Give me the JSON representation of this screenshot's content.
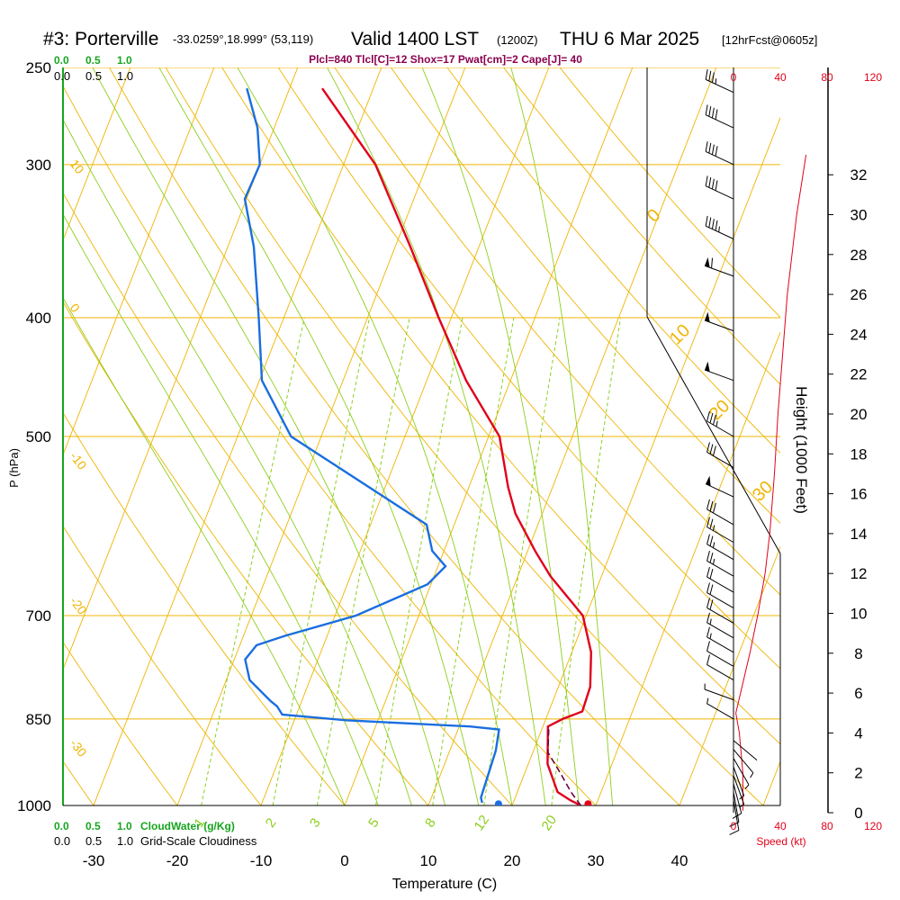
{
  "header": {
    "station": "#3: Porterville",
    "coords": "-33.0259°,18.999° (53,119)",
    "valid": "Valid 1400 LST",
    "utc": "(1200Z)",
    "date": "THU 6 Mar 2025",
    "fcst": "[12hrFcst@0605z]"
  },
  "indices": "Plcl=840 Tlcl[C]=12 Shox=17 Pwat[cm]=2 Cape[J]= 40",
  "cloud_scale": {
    "green_ticks": [
      "0.0",
      "0.5",
      "1.0"
    ],
    "black_ticks": [
      "0.0",
      "0.5",
      "1.0"
    ],
    "cloudwater_label": "CloudWater (g/Kg)",
    "cloudiness_label": "Grid-Scale Cloudiness"
  },
  "speed_scale": {
    "ticks": [
      "0",
      "40",
      "80",
      "120"
    ],
    "label": "Speed (kt)"
  },
  "colors": {
    "isobar": "#f0b400",
    "isotherm": "#f0b400",
    "dry_adiabat": "#f0b400",
    "moist_adiabat": "#8ccf1e",
    "mixing_ratio": "#8ccf1e",
    "temperature": "#e0001b",
    "dewpoint": "#1a6ee0",
    "parcel": "#6a0040",
    "wind_speed": "#e0001b",
    "cloud_axis": "#17a51f"
  },
  "chart_data": {
    "type": "line",
    "title": "#3: Porterville",
    "xlabel": "Temperature (C)",
    "ylabel": "P (hPa)",
    "y2label": "Height (1000 Feet)",
    "x_ticks": [
      "-30",
      "-20",
      "-10",
      "0",
      "10",
      "20",
      "30",
      "40"
    ],
    "y_ticks": [
      "250",
      "300",
      "400",
      "500",
      "700",
      "850",
      "1000"
    ],
    "height_ticks": [
      "0",
      "2",
      "4",
      "6",
      "8",
      "10",
      "12",
      "14",
      "16",
      "18",
      "20",
      "22",
      "24",
      "26",
      "28",
      "30",
      "32"
    ],
    "xlim": [
      -35,
      48
    ],
    "ylim": [
      1000,
      250
    ],
    "y_scale": "log",
    "skew": "skew-T",
    "isotherm_labels": [
      "10",
      "0",
      "-10",
      "-20",
      "-30",
      "0",
      "10",
      "20",
      "30"
    ],
    "mixing_ratio_labels": [
      "1",
      "2",
      "3",
      "5",
      "8",
      "12",
      "20"
    ],
    "series": [
      {
        "name": "Temperature",
        "color": "#e0001b",
        "points": [
          [
            28.2,
            1000
          ],
          [
            26.7,
            990
          ],
          [
            24.8,
            975
          ],
          [
            22.3,
            925
          ],
          [
            20.6,
            862
          ],
          [
            22,
            850
          ],
          [
            24,
            838
          ],
          [
            23.8,
            800
          ],
          [
            22.3,
            750
          ],
          [
            19.6,
            700
          ],
          [
            13.9,
            650
          ],
          [
            10.9,
            620
          ],
          [
            6.8,
            578
          ],
          [
            4.7,
            550
          ],
          [
            1.3,
            500
          ],
          [
            -5.3,
            450
          ],
          [
            -11.5,
            400
          ],
          [
            -18.2,
            350
          ],
          [
            -26.2,
            300
          ],
          [
            -36.1,
            260
          ]
        ]
      },
      {
        "name": "Dewpoint",
        "color": "#1a6ee0",
        "points": [
          [
            16.3,
            995
          ],
          [
            15.9,
            985
          ],
          [
            15.5,
            902
          ],
          [
            14.9,
            867
          ],
          [
            11.3,
            862
          ],
          [
            -3.8,
            852
          ],
          [
            -11.7,
            843
          ],
          [
            -12.7,
            830
          ],
          [
            -13.7,
            822
          ],
          [
            -17.2,
            790
          ],
          [
            -18.7,
            760
          ],
          [
            -18,
            740
          ],
          [
            -15,
            727
          ],
          [
            -7.5,
            700
          ],
          [
            -0.4,
            660
          ],
          [
            0.9,
            638
          ],
          [
            -1.4,
            620
          ],
          [
            -3.3,
            590
          ],
          [
            -23.6,
            500
          ],
          [
            -29.7,
            450
          ],
          [
            -33,
            400
          ],
          [
            -36.9,
            350
          ],
          [
            -40.2,
            320
          ],
          [
            -40,
            300
          ],
          [
            -42,
            280
          ],
          [
            -45.1,
            260
          ]
        ]
      },
      {
        "name": "Parcel",
        "color": "#6a0040",
        "dashed": true,
        "points": [
          [
            28.2,
            1000
          ],
          [
            26.4,
            975
          ],
          [
            24.2,
            940
          ],
          [
            21.8,
            905
          ],
          [
            20.7,
            862
          ]
        ]
      },
      {
        "name": "Surface dewpoint",
        "color": "#1a6ee0",
        "points": [
          [
            18.3,
            997
          ]
        ]
      },
      {
        "name": "Surface temperature",
        "color": "#e0001b",
        "points": [
          [
            29,
            997
          ]
        ]
      }
    ],
    "wind_speed_kt": [
      [
        8,
        0.1
      ],
      [
        8,
        2
      ],
      [
        5,
        4
      ],
      [
        2,
        5
      ],
      [
        6,
        6
      ],
      [
        14,
        8
      ],
      [
        21,
        10
      ],
      [
        27,
        12
      ],
      [
        31,
        14
      ],
      [
        35,
        17
      ],
      [
        38,
        20
      ],
      [
        42,
        23
      ],
      [
        46,
        26
      ],
      [
        50,
        28
      ],
      [
        54,
        30
      ],
      [
        62,
        33
      ]
    ],
    "wind_barbs": [
      {
        "p": 990,
        "speed_kt": 12,
        "dir": 170
      },
      {
        "p": 975,
        "speed_kt": 12,
        "dir": 170
      },
      {
        "p": 960,
        "speed_kt": 10,
        "dir": 165
      },
      {
        "p": 945,
        "speed_kt": 8,
        "dir": 160
      },
      {
        "p": 930,
        "speed_kt": 6,
        "dir": 160
      },
      {
        "p": 915,
        "speed_kt": 5,
        "dir": 150
      },
      {
        "p": 900,
        "speed_kt": 5,
        "dir": 140
      },
      {
        "p": 885,
        "speed_kt": 4,
        "dir": 130
      },
      {
        "p": 850,
        "speed_kt": 5,
        "dir": 300
      },
      {
        "p": 820,
        "speed_kt": 8,
        "dir": 290
      },
      {
        "p": 790,
        "speed_kt": 12,
        "dir": 300
      },
      {
        "p": 770,
        "speed_kt": 14,
        "dir": 300
      },
      {
        "p": 750,
        "speed_kt": 16,
        "dir": 300
      },
      {
        "p": 730,
        "speed_kt": 18,
        "dir": 300
      },
      {
        "p": 710,
        "speed_kt": 20,
        "dir": 300
      },
      {
        "p": 690,
        "speed_kt": 22,
        "dir": 300
      },
      {
        "p": 670,
        "speed_kt": 24,
        "dir": 300
      },
      {
        "p": 650,
        "speed_kt": 26,
        "dir": 300
      },
      {
        "p": 630,
        "speed_kt": 27,
        "dir": 300
      },
      {
        "p": 610,
        "speed_kt": 28,
        "dir": 300
      },
      {
        "p": 590,
        "speed_kt": 30,
        "dir": 300
      },
      {
        "p": 560,
        "speed_kt": 50,
        "dir": 295
      },
      {
        "p": 530,
        "speed_kt": 30,
        "dir": 300
      },
      {
        "p": 500,
        "speed_kt": 35,
        "dir": 300
      },
      {
        "p": 450,
        "speed_kt": 50,
        "dir": 290
      },
      {
        "p": 410,
        "speed_kt": 50,
        "dir": 290
      },
      {
        "p": 370,
        "speed_kt": 60,
        "dir": 290
      },
      {
        "p": 345,
        "speed_kt": 45,
        "dir": 295
      },
      {
        "p": 320,
        "speed_kt": 40,
        "dir": 295
      },
      {
        "p": 300,
        "speed_kt": 40,
        "dir": 295
      },
      {
        "p": 280,
        "speed_kt": 40,
        "dir": 295
      },
      {
        "p": 262,
        "speed_kt": 35,
        "dir": 295
      }
    ]
  }
}
